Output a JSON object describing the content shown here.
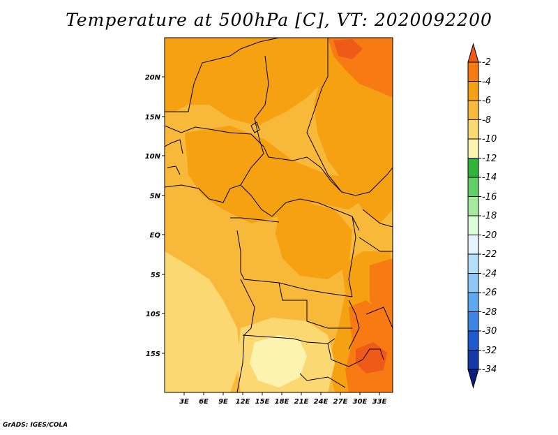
{
  "title": "Temperature at 500hPa [C], VT: 2020092200",
  "credit": "GrADS: IGES/COLA",
  "map": {
    "lat_labels": [
      "20N",
      "15N",
      "10N",
      "5N",
      "EQ",
      "5S",
      "10S",
      "15S"
    ],
    "lon_labels": [
      "3E",
      "6E",
      "9E",
      "12E",
      "15E",
      "18E",
      "21E",
      "24E",
      "27E",
      "30E",
      "33E"
    ]
  },
  "colorbar": {
    "labels": [
      "-2",
      "-4",
      "-6",
      "-8",
      "-10",
      "-12",
      "-14",
      "-16",
      "-18",
      "-20",
      "-22",
      "-24",
      "-26",
      "-28",
      "-30",
      "-32",
      "-34"
    ],
    "colors": [
      "#f05a18",
      "#f87a12",
      "#f5a111",
      "#f8b93a",
      "#fcd872",
      "#fdf3b0",
      "#30b53a",
      "#62d069",
      "#a6eaa0",
      "#ddfcdc",
      "#e3f4ff",
      "#b4dffb",
      "#90c8f5",
      "#5ea8ef",
      "#3b85e4",
      "#2159d0",
      "#1539a8",
      "#0b1e80"
    ]
  },
  "palette": {
    "base": "#f8b93a",
    "warm": "#f5a111",
    "hot": "#f87a12",
    "hottest": "#f05a18",
    "cool": "#fcd872",
    "coolest": "#fdf3b0",
    "border": "#000000"
  }
}
